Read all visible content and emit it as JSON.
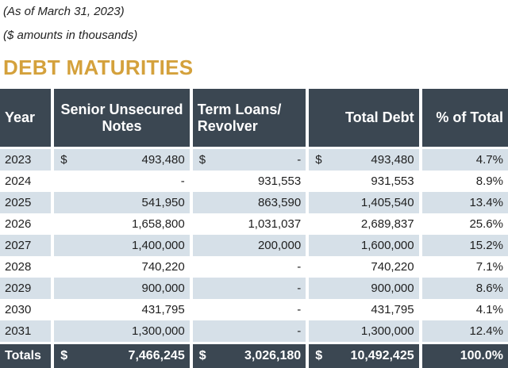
{
  "notes": {
    "as_of": "(As of March 31, 2023)",
    "units": "($ amounts in thousands)"
  },
  "title": "DEBT MATURITIES",
  "colors": {
    "header_bg": "#3b4752",
    "title": "#d4a13c",
    "row_shade": "#d6e0e8"
  },
  "headers": [
    "Year",
    "Senior Unsecured Notes",
    "Term Loans/ Revolver",
    "Total Debt",
    "% of Total"
  ],
  "rows": [
    {
      "year": "2023",
      "senior_cur": "$",
      "senior": "493,480",
      "term_cur": "$",
      "term": "-",
      "total_cur": "$",
      "total": "493,480",
      "pct": "4.7%"
    },
    {
      "year": "2024",
      "senior_cur": "",
      "senior": "-",
      "term_cur": "",
      "term": "931,553",
      "total_cur": "",
      "total": "931,553",
      "pct": "8.9%"
    },
    {
      "year": "2025",
      "senior_cur": "",
      "senior": "541,950",
      "term_cur": "",
      "term": "863,590",
      "total_cur": "",
      "total": "1,405,540",
      "pct": "13.4%"
    },
    {
      "year": "2026",
      "senior_cur": "",
      "senior": "1,658,800",
      "term_cur": "",
      "term": "1,031,037",
      "total_cur": "",
      "total": "2,689,837",
      "pct": "25.6%"
    },
    {
      "year": "2027",
      "senior_cur": "",
      "senior": "1,400,000",
      "term_cur": "",
      "term": "200,000",
      "total_cur": "",
      "total": "1,600,000",
      "pct": "15.2%"
    },
    {
      "year": "2028",
      "senior_cur": "",
      "senior": "740,220",
      "term_cur": "",
      "term": "-",
      "total_cur": "",
      "total": "740,220",
      "pct": "7.1%"
    },
    {
      "year": "2029",
      "senior_cur": "",
      "senior": "900,000",
      "term_cur": "",
      "term": "-",
      "total_cur": "",
      "total": "900,000",
      "pct": "8.6%"
    },
    {
      "year": "2030",
      "senior_cur": "",
      "senior": "431,795",
      "term_cur": "",
      "term": "-",
      "total_cur": "",
      "total": "431,795",
      "pct": "4.1%"
    },
    {
      "year": "2031",
      "senior_cur": "",
      "senior": "1,300,000",
      "term_cur": "",
      "term": "-",
      "total_cur": "",
      "total": "1,300,000",
      "pct": "12.4%"
    }
  ],
  "totals": {
    "label": "Totals",
    "senior_cur": "$",
    "senior": "7,466,245",
    "term_cur": "$",
    "term": "3,026,180",
    "total_cur": "$",
    "total": "10,492,425",
    "pct": "100.0%"
  }
}
